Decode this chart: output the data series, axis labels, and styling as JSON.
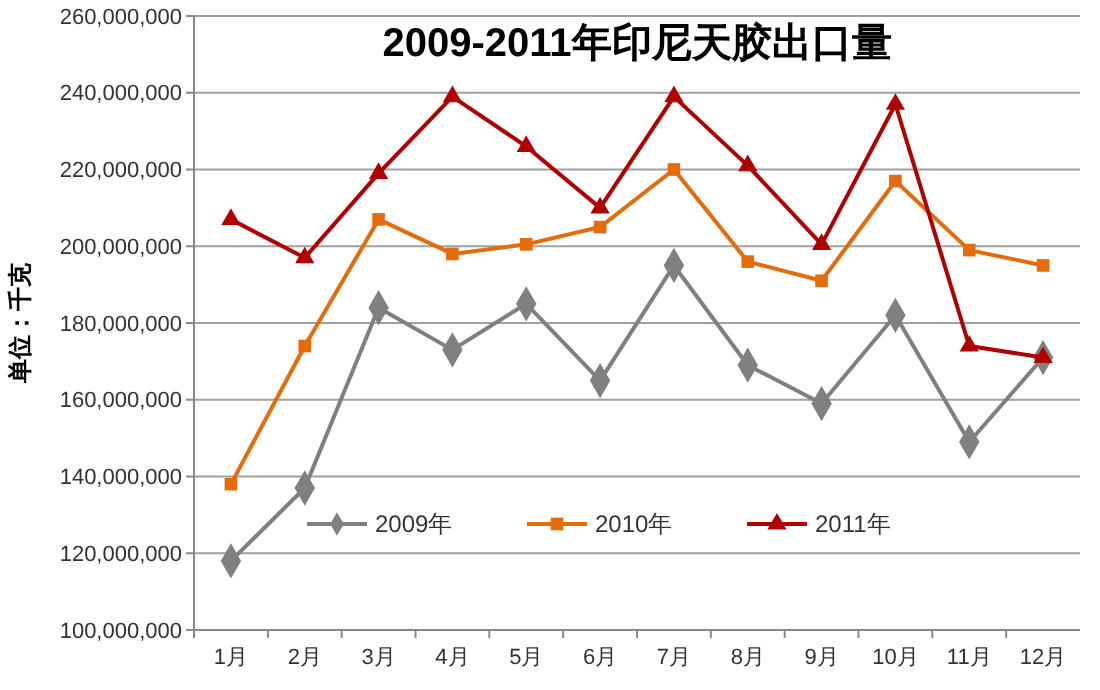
{
  "chart_data": {
    "type": "line",
    "title": "2009-2011年印尼天胶出口量",
    "ylabel": "单位：千克",
    "categories": [
      "1月",
      "2月",
      "3月",
      "4月",
      "5月",
      "6月",
      "7月",
      "8月",
      "9月",
      "10月",
      "11月",
      "12月"
    ],
    "series": [
      {
        "name": "2009年",
        "color": "#808080",
        "marker": "diamond",
        "values": [
          118000000,
          137000000,
          184000000,
          173000000,
          185000000,
          165000000,
          195000000,
          169000000,
          159000000,
          182000000,
          149000000,
          171000000
        ]
      },
      {
        "name": "2010年",
        "color": "#e46c0a",
        "marker": "square",
        "values": [
          138000000,
          174000000,
          207000000,
          198000000,
          200500000,
          205000000,
          220000000,
          196000000,
          191000000,
          217000000,
          199000000,
          195000000
        ]
      },
      {
        "name": "2011年",
        "color": "#b00000",
        "marker": "triangle",
        "values": [
          207000000,
          197000000,
          219000000,
          239000000,
          226000000,
          210000000,
          239000000,
          221000000,
          200500000,
          237000000,
          174000000,
          171000000
        ]
      }
    ],
    "ylim": [
      100000000,
      260000000
    ],
    "yticks": [
      {
        "value": 100000000,
        "label": "100,000,000"
      },
      {
        "value": 120000000,
        "label": "120,000,000"
      },
      {
        "value": 140000000,
        "label": "140,000,000"
      },
      {
        "value": 160000000,
        "label": "160,000,000"
      },
      {
        "value": 180000000,
        "label": "180,000,000"
      },
      {
        "value": 200000000,
        "label": "200,000,000"
      },
      {
        "value": 220000000,
        "label": "220,000,000"
      },
      {
        "value": 240000000,
        "label": "240,000,000"
      },
      {
        "value": 260000000,
        "label": "260,000,000"
      }
    ],
    "grid": "y",
    "legend": "bottom",
    "line_style": "solid"
  }
}
